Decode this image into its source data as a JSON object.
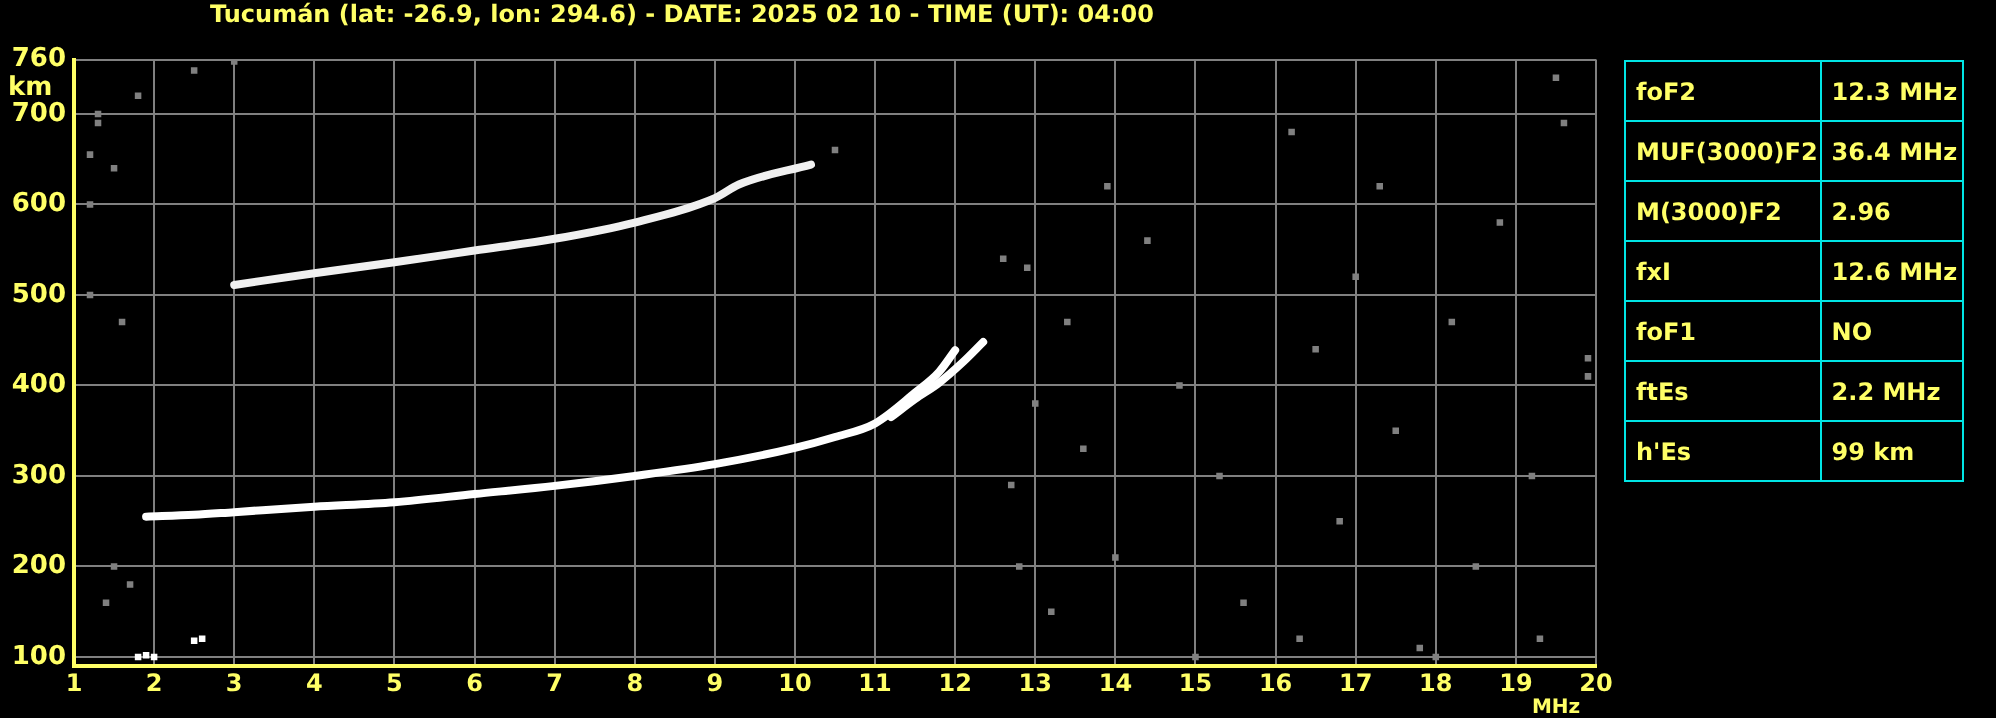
{
  "chart_data": {
    "type": "scatter",
    "title": "Tucumán (lat: -26.9, lon: 294.6) - DATE: 2025 02 10 - TIME (UT): 04:00",
    "xlabel": "MHz",
    "ylabel": "km",
    "xlim": [
      1,
      20
    ],
    "xticks": [
      1,
      2,
      3,
      4,
      5,
      6,
      7,
      8,
      9,
      10,
      11,
      12,
      13,
      14,
      15,
      16,
      17,
      18,
      19,
      20
    ],
    "ylim": [
      90,
      760
    ],
    "yticks": [
      100,
      200,
      300,
      400,
      500,
      600,
      700,
      760
    ],
    "grid": true,
    "legend": false,
    "series": [
      {
        "type": "line",
        "color": "#ffffff",
        "marker": "none",
        "x": [
          1.9,
          2.5,
          3,
          4,
          5,
          6,
          7,
          8,
          9,
          10,
          10.5,
          11,
          11.5,
          11.8,
          12.0
        ],
        "values": [
          255,
          257,
          260,
          266,
          271,
          280,
          289,
          300,
          313,
          331,
          343,
          358,
          392,
          415,
          439
        ]
      },
      {
        "type": "line",
        "color": "#ffffff",
        "marker": "none",
        "x": [
          11.2,
          11.5,
          11.8,
          12.1,
          12.35
        ],
        "values": [
          365,
          385,
          403,
          426,
          448
        ]
      },
      {
        "type": "line",
        "color": "#f0f0f0",
        "marker": "none",
        "x": [
          3,
          4,
          5,
          6,
          7,
          8,
          9,
          9.3,
          10.2
        ],
        "values": [
          511,
          524,
          536,
          549,
          562,
          580,
          607,
          622,
          644
        ]
      },
      {
        "type": "scatter",
        "color": "#ffffff",
        "marker": "square",
        "x": [
          1.8,
          1.9,
          2.0,
          2.5,
          2.6
        ],
        "values": [
          100,
          102,
          100,
          118,
          120
        ]
      },
      {
        "type": "scatter",
        "color": "#808080",
        "marker": "square",
        "x": [
          1.3,
          1.3,
          1.2,
          1.5,
          1.2,
          1.2,
          1.8,
          2.5,
          3.0,
          1.6,
          1.7,
          1.5,
          1.4,
          12.6,
          12.9,
          13.4,
          13.0,
          12.7,
          12.8,
          13.2,
          13.9,
          14.4,
          14.8,
          15.3,
          15.6,
          16.2,
          16.5,
          16.8,
          16.3,
          17.0,
          17.3,
          17.5,
          17.8,
          18.2,
          18.5,
          18.8,
          19.2,
          19.5,
          19.6,
          19.9,
          19.9,
          19.3,
          18.0,
          15.0,
          14.0,
          13.6,
          10.5
        ],
        "values": [
          700,
          690,
          655,
          640,
          600,
          500,
          720,
          748,
          758,
          470,
          180,
          200,
          160,
          540,
          530,
          470,
          380,
          290,
          200,
          150,
          620,
          560,
          400,
          300,
          160,
          680,
          440,
          250,
          120,
          520,
          620,
          350,
          110,
          470,
          200,
          580,
          300,
          740,
          690,
          430,
          410,
          120,
          100,
          100,
          210,
          330,
          660
        ]
      }
    ],
    "annotations": [
      "foF2",
      "12.3 MHz",
      "MUF(3000)F2",
      "36.4 MHz",
      "M(3000)F2",
      "2.96",
      "fxI",
      "12.6 MHz",
      "foF1",
      "NO",
      "ftEs",
      "2.2 MHz",
      "h'Es",
      "99 km"
    ]
  }
}
